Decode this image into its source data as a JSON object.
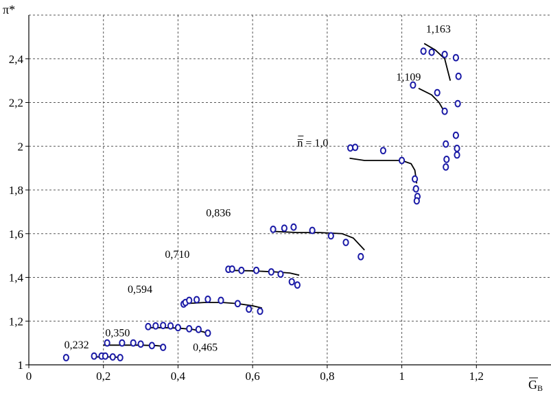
{
  "chart_data": {
    "type": "scatter",
    "title": "",
    "ylabel": "π*",
    "xlabel": "G̅B",
    "xlim": [
      0,
      1.4
    ],
    "ylim": [
      1,
      2.6
    ],
    "x_ticks": [
      0,
      0.2,
      0.4,
      0.6,
      0.8,
      1.0,
      1.2
    ],
    "x_tick_labels": [
      "0",
      "0,2",
      "0,4",
      "0,6",
      "0,8",
      "1",
      "1,2"
    ],
    "y_ticks": [
      1,
      1.2,
      1.4,
      1.6,
      1.8,
      2.0,
      2.2,
      2.4
    ],
    "y_tick_labels": [
      "1",
      "1,2",
      "1,4",
      "1,6",
      "1,8",
      "2",
      "2,2",
      "2,4"
    ],
    "grid": true,
    "grid_style": "dashed",
    "point_color": "#1a1aa6",
    "line_color": "#000000",
    "series": [
      {
        "name": "0,232",
        "label_pos": [
          0.095,
          1.075
        ],
        "points": [
          [
            0.1,
            1.033
          ]
        ],
        "line": []
      },
      {
        "name": "0,350",
        "label_pos": [
          0.205,
          1.13
        ],
        "points": [
          [
            0.175,
            1.04
          ],
          [
            0.195,
            1.04
          ],
          [
            0.205,
            1.04
          ],
          [
            0.225,
            1.036
          ],
          [
            0.245,
            1.033
          ]
        ],
        "line": [
          [
            0.17,
            1.036
          ],
          [
            0.2,
            1.036
          ],
          [
            0.23,
            1.036
          ],
          [
            0.24,
            1.034
          ]
        ]
      },
      {
        "name": "0,465",
        "label_pos": [
          0.44,
          1.065
        ],
        "points": [
          [
            0.21,
            1.1
          ],
          [
            0.25,
            1.1
          ],
          [
            0.28,
            1.1
          ],
          [
            0.3,
            1.095
          ],
          [
            0.33,
            1.088
          ],
          [
            0.36,
            1.08
          ]
        ],
        "line": [
          [
            0.2,
            1.09
          ],
          [
            0.25,
            1.09
          ],
          [
            0.3,
            1.09
          ],
          [
            0.34,
            1.088
          ],
          [
            0.36,
            1.085
          ]
        ]
      },
      {
        "name": "0,594",
        "label_pos": [
          0.265,
          1.33
        ],
        "points": [
          [
            0.32,
            1.175
          ],
          [
            0.34,
            1.178
          ],
          [
            0.36,
            1.18
          ],
          [
            0.38,
            1.178
          ],
          [
            0.4,
            1.17
          ],
          [
            0.43,
            1.165
          ],
          [
            0.455,
            1.162
          ],
          [
            0.48,
            1.145
          ]
        ],
        "line": [
          [
            0.32,
            1.17
          ],
          [
            0.36,
            1.17
          ],
          [
            0.4,
            1.168
          ],
          [
            0.44,
            1.162
          ],
          [
            0.47,
            1.15
          ],
          [
            0.48,
            1.14
          ]
        ]
      },
      {
        "name": "0,710",
        "label_pos": [
          0.365,
          1.49
        ],
        "points": [
          [
            0.415,
            1.278
          ],
          [
            0.42,
            1.285
          ],
          [
            0.43,
            1.295
          ],
          [
            0.45,
            1.298
          ],
          [
            0.48,
            1.3
          ],
          [
            0.515,
            1.295
          ],
          [
            0.56,
            1.28
          ],
          [
            0.59,
            1.255
          ],
          [
            0.62,
            1.245
          ]
        ],
        "line": [
          [
            0.42,
            1.28
          ],
          [
            0.47,
            1.285
          ],
          [
            0.52,
            1.285
          ],
          [
            0.56,
            1.28
          ],
          [
            0.6,
            1.27
          ],
          [
            0.625,
            1.26
          ]
        ]
      },
      {
        "name": "0,836",
        "label_pos": [
          0.475,
          1.68
        ],
        "points": [
          [
            0.535,
            1.437
          ],
          [
            0.545,
            1.438
          ],
          [
            0.57,
            1.432
          ],
          [
            0.61,
            1.432
          ],
          [
            0.65,
            1.425
          ],
          [
            0.675,
            1.415
          ],
          [
            0.705,
            1.38
          ],
          [
            0.72,
            1.365
          ]
        ],
        "line": [
          [
            0.54,
            1.432
          ],
          [
            0.6,
            1.43
          ],
          [
            0.66,
            1.425
          ],
          [
            0.7,
            1.42
          ],
          [
            0.725,
            1.41
          ]
        ]
      },
      {
        "name": "n̅ = 1,0",
        "label_pos": [
          0.72,
          2.0
        ],
        "points": [
          [
            0.655,
            1.62
          ],
          [
            0.685,
            1.625
          ],
          [
            0.71,
            1.63
          ],
          [
            0.76,
            1.615
          ],
          [
            0.81,
            1.59
          ],
          [
            0.85,
            1.56
          ],
          [
            0.89,
            1.495
          ]
        ],
        "line": [
          [
            0.66,
            1.61
          ],
          [
            0.72,
            1.605
          ],
          [
            0.78,
            1.605
          ],
          [
            0.84,
            1.6
          ],
          [
            0.87,
            1.58
          ],
          [
            0.9,
            1.525
          ]
        ]
      },
      {
        "name": "1,109",
        "label_pos": [
          0.985,
          2.3
        ],
        "points": [
          [
            0.862,
            1.992
          ],
          [
            0.875,
            1.995
          ],
          [
            0.95,
            1.98
          ],
          [
            1.0,
            1.935
          ],
          [
            1.035,
            1.85
          ],
          [
            1.038,
            1.805
          ],
          [
            1.042,
            1.77
          ],
          [
            1.04,
            1.75
          ]
        ],
        "line": [
          [
            0.86,
            1.945
          ],
          [
            0.9,
            1.935
          ],
          [
            0.95,
            1.935
          ],
          [
            1.0,
            1.935
          ],
          [
            1.025,
            1.92
          ],
          [
            1.035,
            1.89
          ],
          [
            1.04,
            1.83
          ]
        ]
      },
      {
        "name": "1,163",
        "label_pos": [
          1.065,
          2.52
        ],
        "points": [
          [
            1.03,
            2.28
          ],
          [
            1.095,
            2.245
          ],
          [
            1.115,
            2.16
          ],
          [
            1.118,
            2.01
          ],
          [
            1.12,
            1.94
          ],
          [
            1.118,
            1.905
          ],
          [
            1.145,
            2.05
          ],
          [
            1.148,
            1.99
          ],
          [
            1.148,
            1.96
          ],
          [
            1.15,
            2.195
          ]
        ],
        "line": [
          [
            1.045,
            2.265
          ],
          [
            1.08,
            2.235
          ],
          [
            1.1,
            2.2
          ],
          [
            1.11,
            2.17
          ]
        ]
      },
      {
        "name": "",
        "label_pos": null,
        "points": [
          [
            1.058,
            2.435
          ],
          [
            1.08,
            2.43
          ],
          [
            1.115,
            2.42
          ],
          [
            1.145,
            2.405
          ],
          [
            1.152,
            2.32
          ]
        ],
        "line": [
          [
            1.06,
            2.47
          ],
          [
            1.09,
            2.44
          ],
          [
            1.115,
            2.4
          ],
          [
            1.13,
            2.3
          ]
        ]
      }
    ]
  }
}
